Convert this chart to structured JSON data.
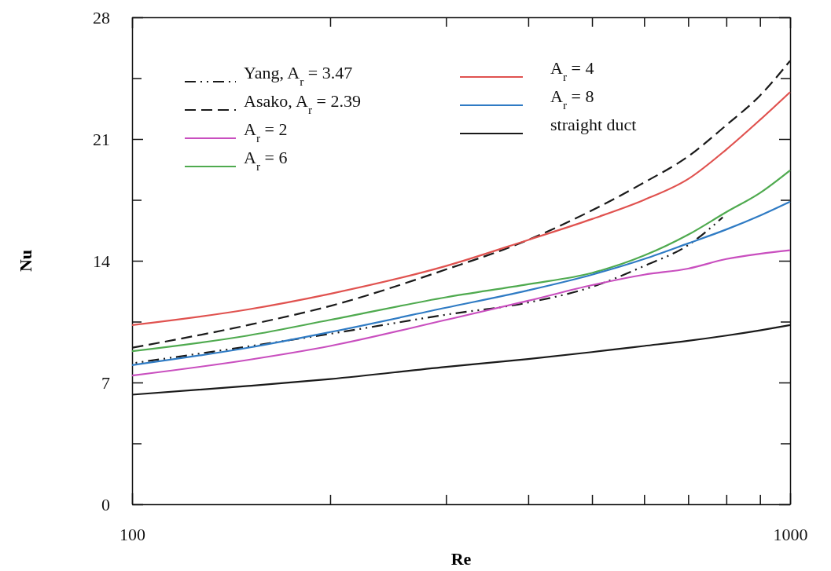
{
  "chart_data": {
    "type": "line",
    "xlabel": "Re",
    "ylabel": "Nu",
    "log": "x",
    "xlim": [
      100,
      1000
    ],
    "xticks": [
      100,
      {
        "value": 200,
        "label": null
      },
      {
        "value": 300,
        "label": null
      },
      {
        "value": 400,
        "label": null
      },
      {
        "value": 500,
        "label": null
      },
      {
        "value": 600,
        "label": null
      },
      {
        "value": 700,
        "label": null
      },
      {
        "value": 800,
        "label": null
      },
      {
        "value": 900,
        "label": null
      },
      1000
    ],
    "ylim": [
      0,
      28
    ],
    "yticks": [
      0,
      {
        "value": 3.5,
        "label": null
      },
      7,
      {
        "value": 10.5,
        "label": null
      },
      14,
      {
        "value": 17.5,
        "label": null
      },
      21,
      {
        "value": 24.5,
        "label": null
      },
      28
    ],
    "grid": false,
    "legend": "top left",
    "marker": "none",
    "x": [
      100,
      150,
      200,
      300,
      400,
      500,
      600,
      700,
      800,
      900,
      1000
    ],
    "series": [
      {
        "name": "Yang, A$_{r}$ = 3.47",
        "color": "#1a1a1a",
        "line_style": "dashdot",
        "x": [
          100,
          200,
          300,
          400,
          500,
          600,
          700,
          790
        ],
        "values": [
          8.1,
          9.8,
          10.9,
          11.6,
          12.5,
          13.7,
          14.9,
          16.5
        ]
      },
      {
        "name": "Asako, A$_{r}$ = 2.39",
        "color": "#1a1a1a",
        "line_style": "dashed",
        "values": [
          9.0,
          10.3,
          11.4,
          13.5,
          15.2,
          16.9,
          18.5,
          20.0,
          21.8,
          23.5,
          25.5
        ]
      },
      {
        "name": "A$_{r}$ = 2",
        "color": "#c94fbf",
        "line_style": "solid",
        "values": [
          7.4,
          8.3,
          9.1,
          10.6,
          11.7,
          12.6,
          13.2,
          13.55,
          14.1,
          14.4,
          14.6
        ]
      },
      {
        "name": "A$_{r}$ = 6",
        "color": "#4faa4f",
        "line_style": "solid",
        "values": [
          8.8,
          9.7,
          10.6,
          11.9,
          12.65,
          13.3,
          14.3,
          15.5,
          16.8,
          17.9,
          19.2
        ]
      },
      {
        "name": "A$_{r}$ = 4",
        "color": "#e0524f",
        "line_style": "solid",
        "values": [
          10.3,
          11.2,
          12.1,
          13.7,
          15.2,
          16.4,
          17.5,
          18.7,
          20.4,
          22.1,
          23.7
        ]
      },
      {
        "name": "A$_{r}$ = 8",
        "color": "#2f7bc4",
        "line_style": "solid",
        "values": [
          8.0,
          9.0,
          9.9,
          11.3,
          12.3,
          13.2,
          14.1,
          15.0,
          15.8,
          16.6,
          17.4
        ]
      },
      {
        "name": "straight duct",
        "color": "#1a1a1a",
        "line_style": "solid",
        "values": [
          6.3,
          6.8,
          7.2,
          7.9,
          8.35,
          8.75,
          9.1,
          9.4,
          9.7,
          10.0,
          10.3
        ]
      }
    ]
  }
}
